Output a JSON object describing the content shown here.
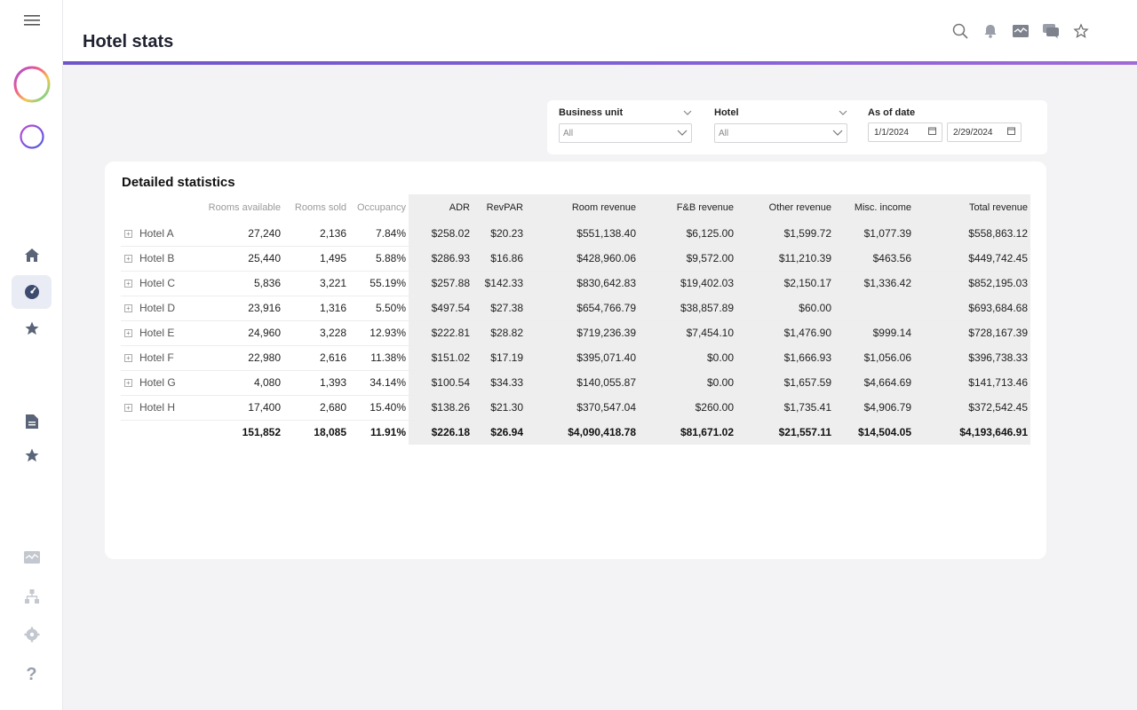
{
  "header": {
    "title": "Hotel stats"
  },
  "filters": {
    "business_unit": {
      "label": "Business unit",
      "value": "All"
    },
    "hotel": {
      "label": "Hotel",
      "value": "All"
    },
    "as_of_date": {
      "label": "As of date",
      "start": "1/1/2024",
      "end": "2/29/2024"
    }
  },
  "card": {
    "title": "Detailed statistics"
  },
  "table": {
    "columns": [
      "Rooms available",
      "Rooms sold",
      "Occupancy",
      "ADR",
      "RevPAR",
      "Room revenue",
      "F&B revenue",
      "Other revenue",
      "Misc. income",
      "Total revenue"
    ],
    "rows": [
      {
        "name": "Hotel A",
        "cells": [
          "27,240",
          "2,136",
          "7.84%",
          "$258.02",
          "$20.23",
          "$551,138.40",
          "$6,125.00",
          "$1,599.72",
          "$1,077.39",
          "$558,863.12"
        ]
      },
      {
        "name": "Hotel B",
        "cells": [
          "25,440",
          "1,495",
          "5.88%",
          "$286.93",
          "$16.86",
          "$428,960.06",
          "$9,572.00",
          "$11,210.39",
          "$463.56",
          "$449,742.45"
        ]
      },
      {
        "name": "Hotel C",
        "cells": [
          "5,836",
          "3,221",
          "55.19%",
          "$257.88",
          "$142.33",
          "$830,642.83",
          "$19,402.03",
          "$2,150.17",
          "$1,336.42",
          "$852,195.03"
        ]
      },
      {
        "name": "Hotel D",
        "cells": [
          "23,916",
          "1,316",
          "5.50%",
          "$497.54",
          "$27.38",
          "$654,766.79",
          "$38,857.89",
          "$60.00",
          "",
          "$693,684.68"
        ]
      },
      {
        "name": "Hotel E",
        "cells": [
          "24,960",
          "3,228",
          "12.93%",
          "$222.81",
          "$28.82",
          "$719,236.39",
          "$7,454.10",
          "$1,476.90",
          "$999.14",
          "$728,167.39"
        ]
      },
      {
        "name": "Hotel F",
        "cells": [
          "22,980",
          "2,616",
          "11.38%",
          "$151.02",
          "$17.19",
          "$395,071.40",
          "$0.00",
          "$1,666.93",
          "$1,056.06",
          "$396,738.33"
        ]
      },
      {
        "name": "Hotel G",
        "cells": [
          "4,080",
          "1,393",
          "34.14%",
          "$100.54",
          "$34.33",
          "$140,055.87",
          "$0.00",
          "$1,657.59",
          "$4,664.69",
          "$141,713.46"
        ]
      },
      {
        "name": "Hotel H",
        "cells": [
          "17,400",
          "2,680",
          "15.40%",
          "$138.26",
          "$21.30",
          "$370,547.04",
          "$260.00",
          "$1,735.41",
          "$4,906.79",
          "$372,542.45"
        ]
      }
    ],
    "totals": [
      "151,852",
      "18,085",
      "11.91%",
      "$226.18",
      "$26.94",
      "$4,090,418.78",
      "$81,671.02",
      "$21,557.11",
      "$14,504.05",
      "$4,193,646.91"
    ]
  },
  "icons": {
    "rail": [
      "hamburger-menu-icon",
      "gradient-ring-logo-icon",
      "ring-icon",
      "home-icon",
      "dashboard-gauge-icon",
      "star-icon",
      "document-icon",
      "star-icon",
      "dashboard-icon",
      "hierarchy-icon",
      "gear-icon",
      "help-icon"
    ],
    "header": [
      "search-icon",
      "bell-icon",
      "dashboard-icon",
      "chat-icon",
      "favorite-star-icon"
    ]
  }
}
